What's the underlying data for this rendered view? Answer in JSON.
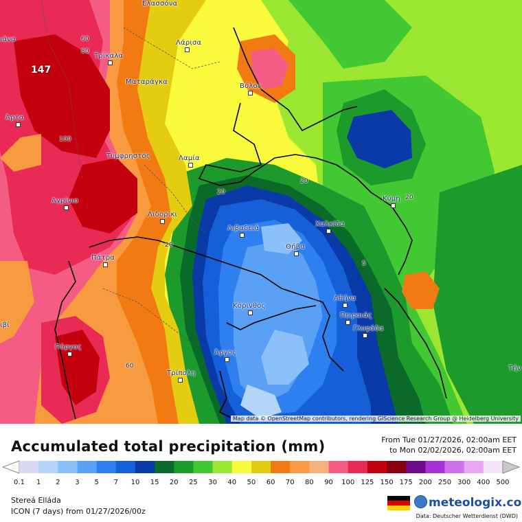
{
  "map": {
    "max_value_label": "147",
    "attribution": "Map data © OpenStreetMap contributors, rendering GIScience Research Group @ Heidelberg University",
    "cities": [
      {
        "name": "Ελασσόνα"
      },
      {
        "name": "Τρίκαλα"
      },
      {
        "name": "Λάρισα"
      },
      {
        "name": "Ματαράγκα"
      },
      {
        "name": "Βόλος"
      },
      {
        "name": "Άρτα"
      },
      {
        "name": "Τυμφρηστός"
      },
      {
        "name": "Λαμία"
      },
      {
        "name": "Αγρίνιο"
      },
      {
        "name": "Λιδορίκι"
      },
      {
        "name": "Λιβαδειά"
      },
      {
        "name": "Χαλκίδα"
      },
      {
        "name": "Κύμη"
      },
      {
        "name": "Πάτρα"
      },
      {
        "name": "Θήβα"
      },
      {
        "name": "Κόρινθος"
      },
      {
        "name": "Αθήνα"
      },
      {
        "name": "Πειραιάς"
      },
      {
        "name": "Γλυφάδα"
      },
      {
        "name": "Πύργος"
      },
      {
        "name": "Άργος"
      },
      {
        "name": "Τρίπολη"
      },
      {
        "name": "ιάνα"
      },
      {
        "name": "ιβί"
      },
      {
        "name": "Τήν"
      }
    ],
    "contour_labels": [
      "60",
      "80",
      "100",
      "20",
      "20",
      "20",
      "20",
      "5",
      "60"
    ]
  },
  "legend": {
    "title": "Accumulated total precipitation (mm)",
    "from_text": "From Tue 01/27/2026, 02:00am EET",
    "to_text": "to Mon 02/02/2026, 02:00am EET",
    "scale": [
      {
        "label": "0.1",
        "color": "#d8d8f4"
      },
      {
        "label": "1",
        "color": "#b4d4f8"
      },
      {
        "label": "2",
        "color": "#8cc0f8"
      },
      {
        "label": "3",
        "color": "#5aa0f4"
      },
      {
        "label": "5",
        "color": "#2e7ff0"
      },
      {
        "label": "7",
        "color": "#1560d8"
      },
      {
        "label": "10",
        "color": "#0a3aa8"
      },
      {
        "label": "15",
        "color": "#0a6a2a"
      },
      {
        "label": "20",
        "color": "#1c9a2c"
      },
      {
        "label": "25",
        "color": "#42c832"
      },
      {
        "label": "30",
        "color": "#9ae630"
      },
      {
        "label": "40",
        "color": "#fafa3c"
      },
      {
        "label": "50",
        "color": "#e4cc10"
      },
      {
        "label": "60",
        "color": "#f27a12"
      },
      {
        "label": "70",
        "color": "#f89a40"
      },
      {
        "label": "80",
        "color": "#f6b07c"
      },
      {
        "label": "90",
        "color": "#f45c84"
      },
      {
        "label": "100",
        "color": "#e82a54"
      },
      {
        "label": "125",
        "color": "#c4000e"
      },
      {
        "label": "150",
        "color": "#8a000c"
      },
      {
        "label": "175",
        "color": "#6e0a8a"
      },
      {
        "label": "200",
        "color": "#a830d8"
      },
      {
        "label": "250",
        "color": "#d070f0"
      },
      {
        "label": "300",
        "color": "#e8a8f4"
      },
      {
        "label": "400",
        "color": "#f4e4f8"
      },
      {
        "label": "500",
        "color": "#c8c8c8"
      }
    ],
    "region": "Stereá Elláda",
    "model_run": "ICON (7 days) from 01/27/2026/00z",
    "brand": "meteologix.com",
    "data_source": "Data: Deutscher Wetterdienst (DWD)"
  }
}
